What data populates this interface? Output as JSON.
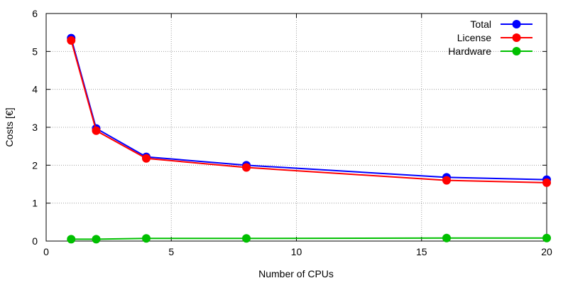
{
  "chart_data": {
    "type": "line",
    "title": "",
    "xlabel": "Number of CPUs",
    "ylabel": "Costs [€]",
    "xlim": [
      0,
      20
    ],
    "ylim": [
      0,
      6
    ],
    "x_ticks": [
      0,
      5,
      10,
      15,
      20
    ],
    "y_ticks": [
      0,
      1,
      2,
      3,
      4,
      5,
      6
    ],
    "x_tick_labels": [
      "0",
      "5",
      "10",
      "15",
      "20"
    ],
    "y_tick_labels": [
      "0",
      "1",
      "2",
      "3",
      "4",
      "5",
      "6"
    ],
    "grid": true,
    "legend_position": "top-right",
    "x": [
      1,
      2,
      4,
      8,
      16,
      20
    ],
    "series": [
      {
        "name": "Total",
        "color": "#0000ff",
        "values": [
          5.35,
          2.97,
          2.22,
          2.0,
          1.68,
          1.62
        ]
      },
      {
        "name": "License",
        "color": "#ff0000",
        "values": [
          5.29,
          2.91,
          2.18,
          1.94,
          1.6,
          1.54
        ]
      },
      {
        "name": "Hardware",
        "color": "#00c000",
        "values": [
          0.05,
          0.05,
          0.07,
          0.07,
          0.08,
          0.08
        ]
      }
    ]
  }
}
